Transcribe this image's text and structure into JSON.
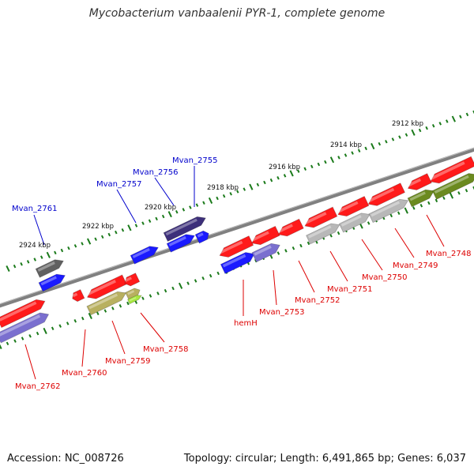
{
  "title": "Mycobacterium vanbaalenii PYR-1, complete genome",
  "footer": {
    "accession": "Accession: NC_008726",
    "summary": "Topology: circular; Length: 6,491,865 bp; Genes: 6,037"
  },
  "colors": {
    "backbone": "#808080",
    "tick": "#1a7a1a",
    "forward_label": "#0000cc",
    "reverse_label": "#dd0000",
    "gene_red": "#ff1a1a",
    "gene_blue": "#1a1aff",
    "gene_darkpurple": "#3d2f7a",
    "gene_purple": "#7a6fcf",
    "gene_gray": "#b8b8b8",
    "gene_darkgray": "#606060",
    "gene_olive": "#6b8a1f",
    "gene_khaki": "#b8b060",
    "gene_lime": "#a8e840"
  },
  "kbp_markers": [
    "2912 kbp",
    "2914 kbp",
    "2916 kbp",
    "2918 kbp",
    "2920 kbp",
    "2922 kbp",
    "2924 kbp"
  ],
  "forward_genes": [
    "Mvan_2761",
    "Mvan_2757",
    "Mvan_2756",
    "Mvan_2755"
  ],
  "reverse_genes": [
    "Mvan_2762",
    "Mvan_2760",
    "Mvan_2759",
    "Mvan_2758",
    "hemH",
    "Mvan_2753",
    "Mvan_2752",
    "Mvan_2751",
    "Mvan_2750",
    "Mvan_2749",
    "Mvan_2748"
  ]
}
